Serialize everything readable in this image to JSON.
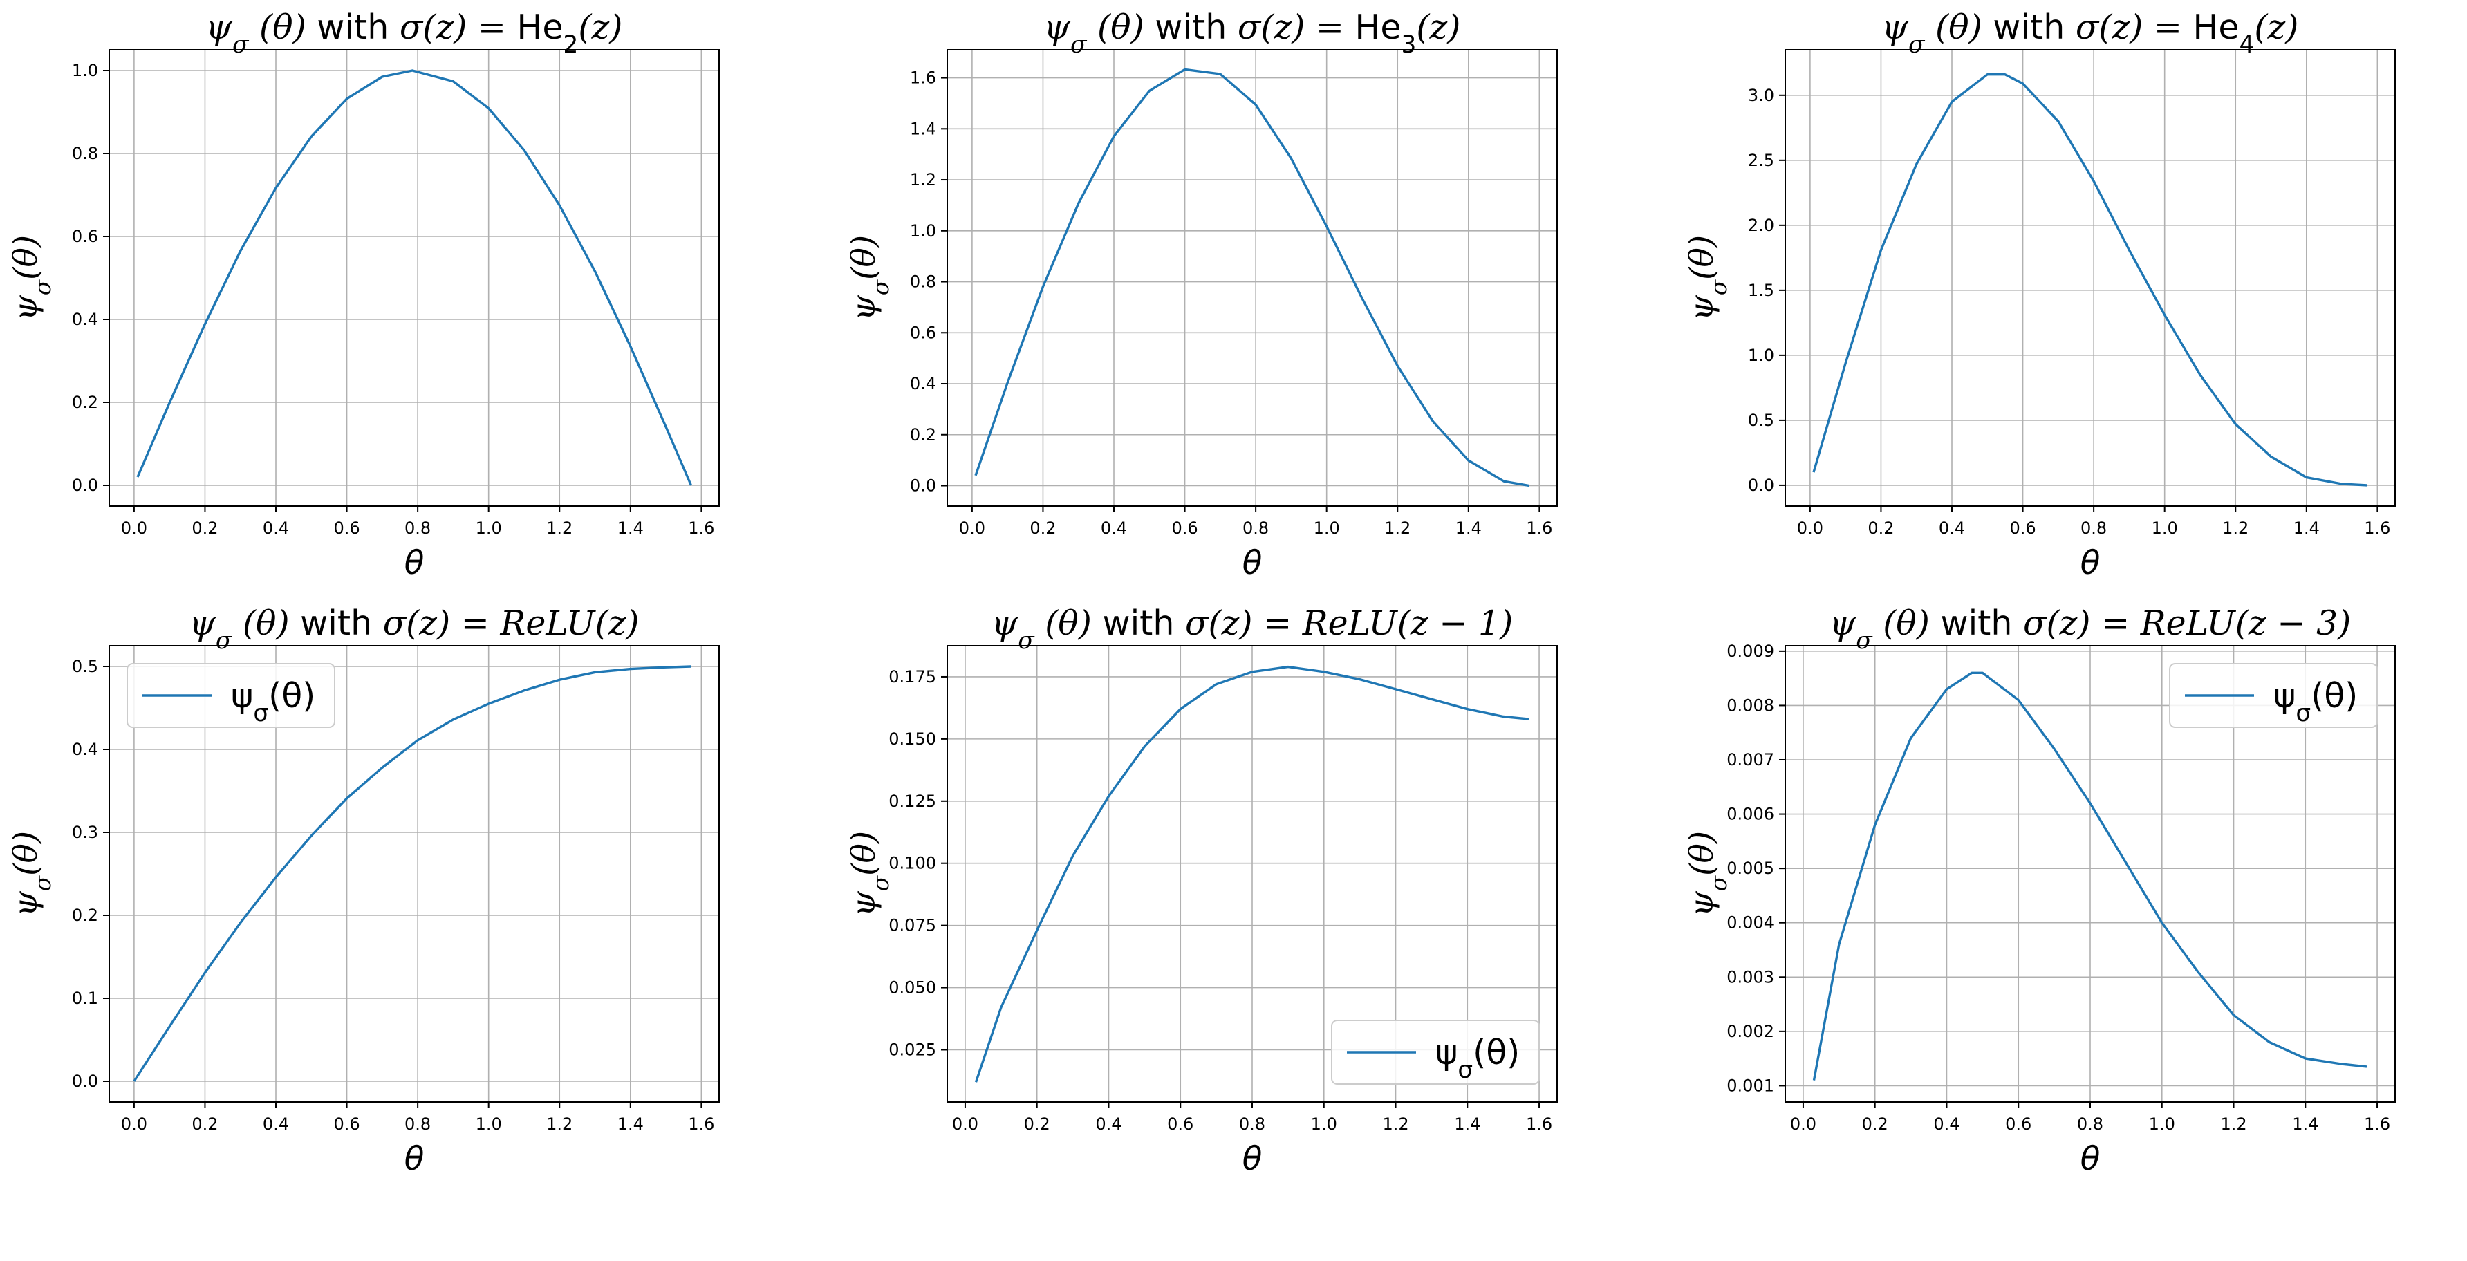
{
  "figure": {
    "line_color": "#1f77b4",
    "grid": true,
    "xlabel": "θ",
    "ylabel": "ψσ(θ)",
    "legend_label": "ψσ(θ)"
  },
  "chart_data": [
    {
      "type": "line",
      "title": "ψσ(θ) with σ(z) = He2(z)",
      "title_parts": {
        "pre": "ψ",
        "sub": "σ",
        "mid": "(θ) with ",
        "sig": "σ(z) = He",
        "sub2": "2",
        "post": "(z)"
      },
      "xlabel": "θ",
      "ylabel": "ψσ(θ)",
      "xlim": [
        -0.07,
        1.65
      ],
      "ylim": [
        -0.05,
        1.05
      ],
      "xticks": [
        "0.0",
        "0.2",
        "0.4",
        "0.6",
        "0.8",
        "1.0",
        "1.2",
        "1.4",
        "1.6"
      ],
      "yticks": [
        "0.0",
        "0.2",
        "0.4",
        "0.6",
        "0.8",
        "1.0"
      ],
      "legend": null,
      "series": [
        {
          "x": [
            0.01,
            0.1,
            0.2,
            0.3,
            0.4,
            0.5,
            0.6,
            0.7,
            0.785,
            0.9,
            1.0,
            1.1,
            1.2,
            1.3,
            1.4,
            1.5,
            1.571
          ],
          "y": [
            0.02,
            0.199,
            0.389,
            0.565,
            0.717,
            0.841,
            0.932,
            0.985,
            1.0,
            0.974,
            0.909,
            0.808,
            0.675,
            0.516,
            0.335,
            0.141,
            0.0
          ]
        }
      ]
    },
    {
      "type": "line",
      "title": "ψσ(θ) with σ(z) = He3(z)",
      "title_parts": {
        "pre": "ψ",
        "sub": "σ",
        "mid": "(θ) with ",
        "sig": "σ(z) = He",
        "sub2": "3",
        "post": "(z)"
      },
      "xlabel": "θ",
      "ylabel": "ψσ(θ)",
      "xlim": [
        -0.07,
        1.65
      ],
      "ylim": [
        -0.08,
        1.71
      ],
      "xticks": [
        "0.0",
        "0.2",
        "0.4",
        "0.6",
        "0.8",
        "1.0",
        "1.2",
        "1.4",
        "1.6"
      ],
      "yticks": [
        "0.0",
        "0.2",
        "0.4",
        "0.6",
        "0.8",
        "1.0",
        "1.2",
        "1.4",
        "1.6"
      ],
      "legend": null,
      "series": [
        {
          "x": [
            0.01,
            0.1,
            0.2,
            0.3,
            0.4,
            0.5,
            0.6,
            0.7,
            0.8,
            0.9,
            1.0,
            1.1,
            1.2,
            1.3,
            1.4,
            1.5,
            1.571
          ],
          "y": [
            0.04,
            0.404,
            0.781,
            1.107,
            1.371,
            1.549,
            1.633,
            1.615,
            1.495,
            1.284,
            1.017,
            0.735,
            0.47,
            0.252,
            0.099,
            0.017,
            0.0
          ]
        }
      ]
    },
    {
      "type": "line",
      "title": "ψσ(θ) with σ(z) = He4(z)",
      "title_parts": {
        "pre": "ψ",
        "sub": "σ",
        "mid": "(θ) with ",
        "sig": "σ(z) = He",
        "sub2": "4",
        "post": "(z)"
      },
      "xlabel": "θ",
      "ylabel": "ψσ(θ)",
      "xlim": [
        -0.07,
        1.65
      ],
      "ylim": [
        -0.16,
        3.35
      ],
      "xticks": [
        "0.0",
        "0.2",
        "0.4",
        "0.6",
        "0.8",
        "1.0",
        "1.2",
        "1.4",
        "1.6"
      ],
      "yticks": [
        "0.0",
        "0.5",
        "1.0",
        "1.5",
        "2.0",
        "2.5",
        "3.0"
      ],
      "legend": null,
      "series": [
        {
          "x": [
            0.01,
            0.1,
            0.2,
            0.3,
            0.4,
            0.5,
            0.55,
            0.6,
            0.7,
            0.8,
            0.9,
            1.0,
            1.1,
            1.2,
            1.3,
            1.4,
            1.5,
            1.571
          ],
          "y": [
            0.1,
            0.94,
            1.81,
            2.47,
            2.95,
            3.16,
            3.16,
            3.09,
            2.8,
            2.34,
            1.81,
            1.31,
            0.85,
            0.47,
            0.22,
            0.06,
            0.01,
            0.0
          ]
        }
      ]
    },
    {
      "type": "line",
      "title": "ψσ(θ) with σ(z) = ReLU(z)",
      "title_parts": {
        "pre": "ψ",
        "sub": "σ",
        "mid": "(θ) with ",
        "sig": "σ(z) = ReLU(z)",
        "sub2": "",
        "post": ""
      },
      "xlabel": "θ",
      "ylabel": "ψσ(θ)",
      "xlim": [
        -0.07,
        1.65
      ],
      "ylim": [
        -0.025,
        0.525
      ],
      "xticks": [
        "0.0",
        "0.2",
        "0.4",
        "0.6",
        "0.8",
        "1.0",
        "1.2",
        "1.4",
        "1.6"
      ],
      "yticks": [
        "0.0",
        "0.1",
        "0.2",
        "0.3",
        "0.4",
        "0.5"
      ],
      "legend": {
        "label": "ψσ(θ)",
        "loc": "upper left"
      },
      "series": [
        {
          "name": "ψσ(θ)",
          "x": [
            0.0,
            0.1,
            0.2,
            0.3,
            0.4,
            0.5,
            0.6,
            0.7,
            0.8,
            0.9,
            1.0,
            1.1,
            1.2,
            1.3,
            1.4,
            1.5,
            1.571
          ],
          "y": [
            0.0,
            0.066,
            0.131,
            0.191,
            0.246,
            0.296,
            0.341,
            0.378,
            0.411,
            0.436,
            0.455,
            0.471,
            0.484,
            0.493,
            0.497,
            0.499,
            0.5
          ]
        }
      ]
    },
    {
      "type": "line",
      "title": "ψσ(θ) with σ(z) = ReLU(z − 1)",
      "title_parts": {
        "pre": "ψ",
        "sub": "σ",
        "mid": "(θ) with ",
        "sig": "σ(z) = ReLU(z − 1)",
        "sub2": "",
        "post": ""
      },
      "xlabel": "θ",
      "ylabel": "ψσ(θ)",
      "xlim": [
        -0.05,
        1.65
      ],
      "ylim": [
        0.004,
        0.1875
      ],
      "xticks": [
        "0.0",
        "0.2",
        "0.4",
        "0.6",
        "0.8",
        "1.0",
        "1.2",
        "1.4",
        "1.6"
      ],
      "yticks": [
        "0.025",
        "0.050",
        "0.075",
        "0.100",
        "0.125",
        "0.150",
        "0.175"
      ],
      "legend": {
        "label": "ψσ(θ)",
        "loc": "lower right"
      },
      "series": [
        {
          "name": "ψσ(θ)",
          "x": [
            0.03,
            0.1,
            0.2,
            0.3,
            0.4,
            0.5,
            0.6,
            0.7,
            0.8,
            0.9,
            1.0,
            1.1,
            1.2,
            1.3,
            1.4,
            1.5,
            1.571
          ],
          "y": [
            0.012,
            0.042,
            0.073,
            0.103,
            0.127,
            0.147,
            0.162,
            0.172,
            0.177,
            0.179,
            0.177,
            0.174,
            0.17,
            0.166,
            0.162,
            0.159,
            0.158
          ]
        }
      ]
    },
    {
      "type": "line",
      "title": "ψσ(θ) with σ(z) = ReLU(z − 3)",
      "title_parts": {
        "pre": "ψ",
        "sub": "σ",
        "mid": "(θ) with ",
        "sig": "σ(z) = ReLU(z − 3)",
        "sub2": "",
        "post": ""
      },
      "xlabel": "θ",
      "ylabel": "ψσ(θ)",
      "xlim": [
        -0.05,
        1.65
      ],
      "ylim": [
        0.0007,
        0.0091
      ],
      "xticks": [
        "0.0",
        "0.2",
        "0.4",
        "0.6",
        "0.8",
        "1.0",
        "1.2",
        "1.4",
        "1.6"
      ],
      "yticks": [
        "0.001",
        "0.002",
        "0.003",
        "0.004",
        "0.005",
        "0.006",
        "0.007",
        "0.008",
        "0.009"
      ],
      "legend": {
        "label": "ψσ(θ)",
        "loc": "upper right"
      },
      "series": [
        {
          "name": "ψσ(θ)",
          "x": [
            0.03,
            0.1,
            0.2,
            0.3,
            0.4,
            0.47,
            0.5,
            0.6,
            0.7,
            0.8,
            0.9,
            1.0,
            1.1,
            1.2,
            1.3,
            1.4,
            1.5,
            1.571
          ],
          "y": [
            0.0011,
            0.0036,
            0.0058,
            0.0074,
            0.0083,
            0.0086,
            0.0086,
            0.0081,
            0.0072,
            0.0062,
            0.0051,
            0.004,
            0.0031,
            0.0023,
            0.0018,
            0.0015,
            0.0014,
            0.00135
          ]
        }
      ]
    }
  ]
}
